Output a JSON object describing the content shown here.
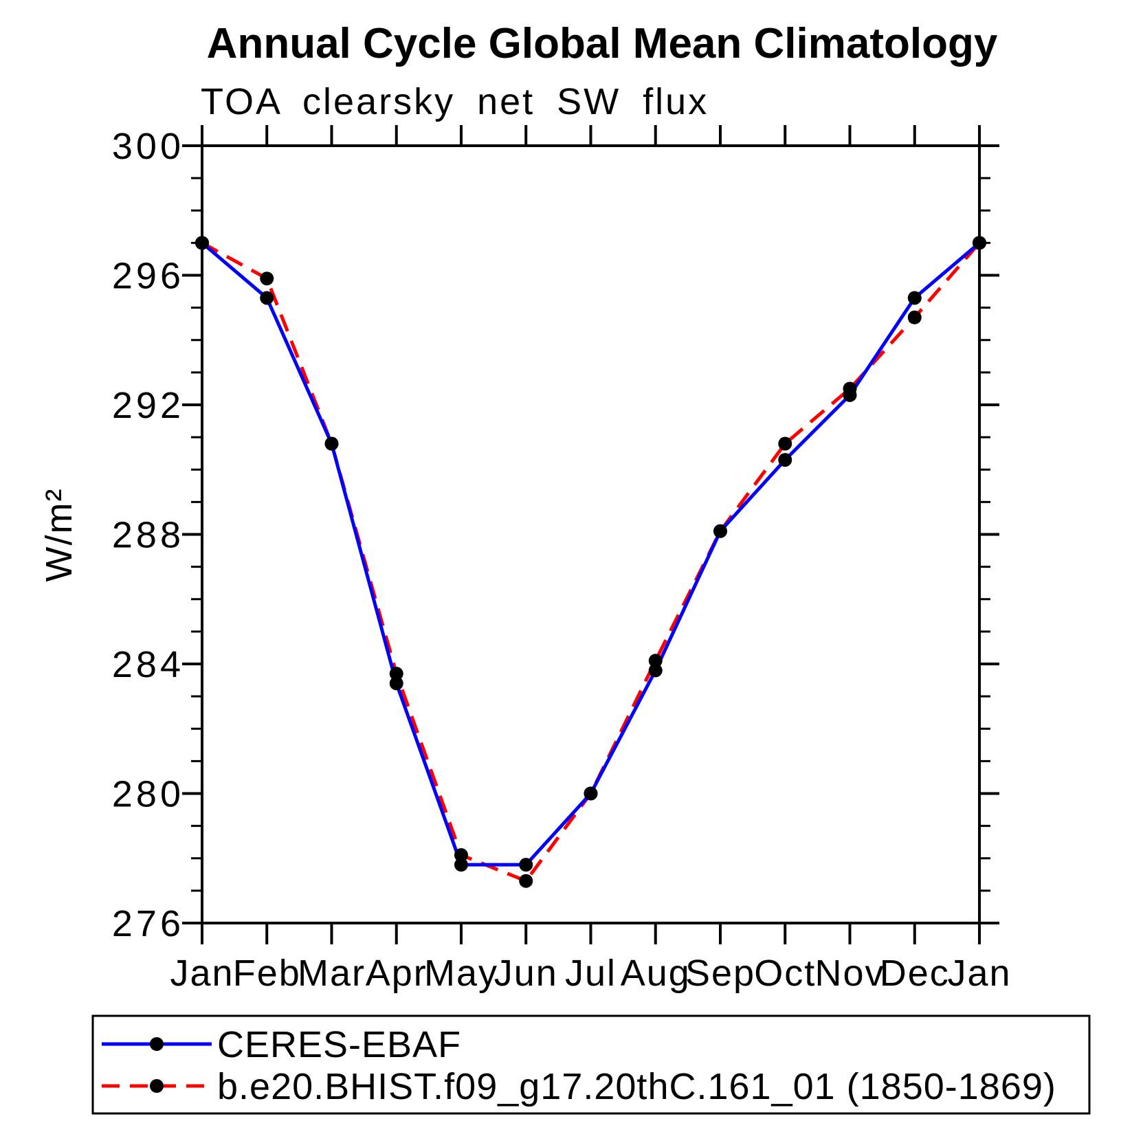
{
  "page": {
    "background": "#ffffff"
  },
  "chart_data": {
    "type": "line",
    "title": "Annual Cycle Global Mean Climatology",
    "subtitle": "TOA clearsky net SW flux",
    "ylabel": "W/m²",
    "xlabel": "",
    "x_categories": [
      "Jan",
      "Feb",
      "Mar",
      "Apr",
      "May",
      "Jun",
      "Jul",
      "Aug",
      "Sep",
      "Oct",
      "Nov",
      "Dec",
      "Jan"
    ],
    "ylim": [
      276,
      300
    ],
    "y_major_ticks": [
      276,
      280,
      284,
      288,
      292,
      296,
      300
    ],
    "y_minor_tick_interval": 1,
    "grid": false,
    "legend_position": "bottom",
    "marker": {
      "shape": "circle",
      "color": "#000000"
    },
    "series": [
      {
        "name": "CERES-EBAF",
        "color": "#0000ff",
        "line_style": "solid",
        "values": [
          297.0,
          295.3,
          290.8,
          283.4,
          277.8,
          277.8,
          280.0,
          283.8,
          288.1,
          290.3,
          292.3,
          295.3,
          297.0
        ]
      },
      {
        "name": "b.e20.BHIST.f09_g17.20thC.161_01 (1850-1869)",
        "color": "#ff0000",
        "line_style": "dashed",
        "values": [
          297.0,
          295.9,
          290.8,
          283.7,
          278.1,
          277.3,
          280.0,
          284.1,
          288.1,
          290.8,
          292.5,
          294.7,
          297.0
        ]
      }
    ]
  }
}
